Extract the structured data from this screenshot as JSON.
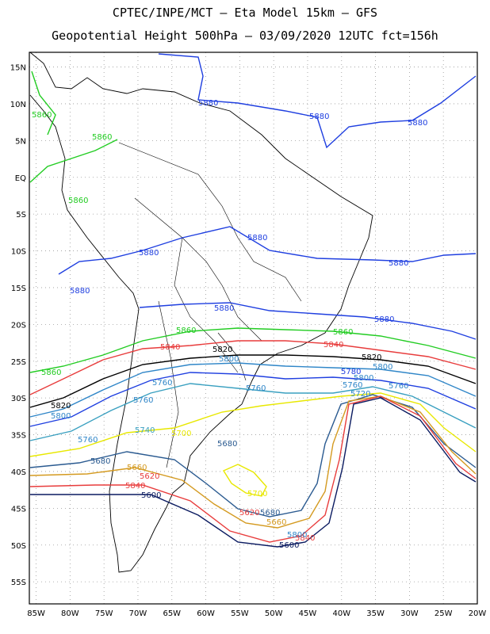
{
  "header": {
    "line1": "CPTEC/INPE/MCT –  Eta Model 15km – GFS",
    "line2": "Geopotential Height 500hPa – 03/09/2020 12UTC fct=156h"
  },
  "map": {
    "lon_range": [
      -86,
      -20
    ],
    "lat_range": [
      -58,
      17
    ],
    "lat_ticks": [
      "15N",
      "10N",
      "5N",
      "EQ",
      "5S",
      "10S",
      "15S",
      "20S",
      "25S",
      "30S",
      "35S",
      "40S",
      "45S",
      "50S",
      "55S"
    ],
    "lon_ticks": [
      "85W",
      "80W",
      "75W",
      "70W",
      "65W",
      "60W",
      "55W",
      "50W",
      "45W",
      "40W",
      "35W",
      "30W",
      "25W",
      "20W"
    ],
    "grid": "dotted",
    "contour_labels": [
      {
        "text": "5880",
        "color": "#1f3fe0"
      },
      {
        "text": "5860",
        "color": "#22cc22"
      },
      {
        "text": "5840",
        "color": "#e83c3c"
      },
      {
        "text": "5820",
        "color": "#000000"
      },
      {
        "text": "5800",
        "color": "#2f86c8"
      },
      {
        "text": "5780",
        "color": "#1f3fe0"
      },
      {
        "text": "5760",
        "color": "#2f86c8"
      },
      {
        "text": "5740",
        "color": "#3aa0c0"
      },
      {
        "text": "5720",
        "color": "#2f86c8"
      },
      {
        "text": "5700",
        "color": "#e8e800"
      },
      {
        "text": "5680",
        "color": "#2a5a90"
      },
      {
        "text": "5660",
        "color": "#d49a20"
      },
      {
        "text": "5620",
        "color": "#e83c3c"
      },
      {
        "text": "5600",
        "color": "#0a1a60"
      }
    ]
  }
}
